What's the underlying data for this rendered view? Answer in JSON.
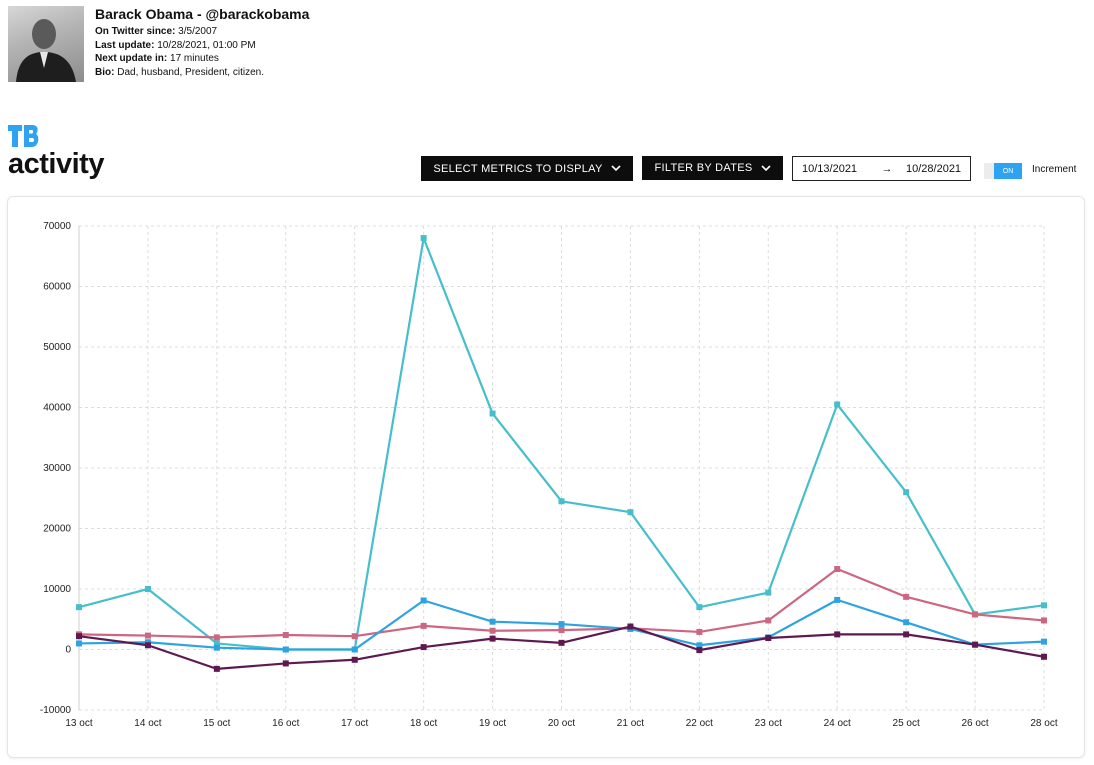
{
  "profile": {
    "name": "Barack Obama - @barackobama",
    "since_label": "On Twitter since:",
    "since_value": "3/5/2007",
    "last_update_label": "Last update:",
    "last_update_value": "10/28/2021, 01:00 PM",
    "next_update_label": "Next update in:",
    "next_update_value": "17 minutes",
    "bio_label": "Bio:",
    "bio_value": "Dad, husband, President, citizen."
  },
  "page": {
    "title": "activity"
  },
  "controls": {
    "metrics_button": "SELECT METRICS TO DISPLAY",
    "dates_button": "FILTER BY DATES",
    "date_start": "10/13/2021",
    "date_arrow": "→",
    "date_end": "10/28/2021",
    "toggle_on": "ON",
    "toggle_label": "Increment"
  },
  "colors": {
    "brand": "#2ea3f2",
    "teal": "#46bfcb",
    "pink": "#cd6680",
    "blue": "#2fa3e0",
    "purple": "#5e1a50"
  },
  "chart_data": {
    "type": "line",
    "categories": [
      "13 oct",
      "14 oct",
      "15 oct",
      "16 oct",
      "17 oct",
      "18 oct",
      "19 oct",
      "20 oct",
      "21 oct",
      "22 oct",
      "23 oct",
      "24 oct",
      "25 oct",
      "26 oct",
      "28 oct"
    ],
    "ylim": [
      -10000,
      70000
    ],
    "yticks": [
      -10000,
      0,
      10000,
      20000,
      30000,
      40000,
      50000,
      60000,
      70000
    ],
    "grid": true,
    "series": [
      {
        "color": "#46bfcb",
        "values": [
          7000,
          10000,
          1000,
          0,
          0,
          68000,
          39000,
          24500,
          22700,
          7000,
          9400,
          40500,
          26000,
          5800,
          7300
        ]
      },
      {
        "color": "#cd6680",
        "values": [
          2500,
          2300,
          2000,
          2400,
          2200,
          3900,
          3100,
          3200,
          3500,
          2900,
          4800,
          13300,
          8700,
          5800,
          4800
        ]
      },
      {
        "color": "#2fa3e0",
        "values": [
          1000,
          1200,
          300,
          0,
          0,
          8100,
          4600,
          4200,
          3400,
          700,
          2000,
          8200,
          4500,
          800,
          1300
        ]
      },
      {
        "color": "#5e1a50",
        "values": [
          2200,
          700,
          -3200,
          -2300,
          -1700,
          400,
          1800,
          1100,
          3800,
          -100,
          1900,
          2500,
          2500,
          800,
          -1200
        ]
      }
    ]
  }
}
